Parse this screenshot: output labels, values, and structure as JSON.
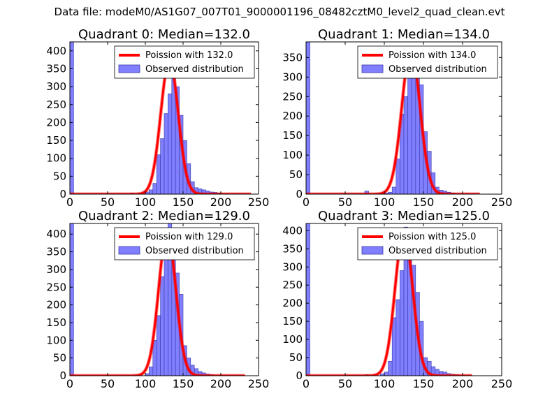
{
  "figure_title": "Data file: modeM0/AS1G07_007T01_9000001196_08482cztM0_level2_quad_clean.evt",
  "colors": {
    "bar_fill": "#7f7fff",
    "bar_edge": "#3a3aa8",
    "fit_line": "#ff0000",
    "axis": "#000000"
  },
  "legend_labels": {
    "fit_prefix": "Poission with",
    "observed": "Observed distribution"
  },
  "chart_data": [
    {
      "type": "bar",
      "title": "Quadrant 0: Median=132.0",
      "median": 132.0,
      "fit_label": "Poission with 132.0",
      "observed_label": "Observed distribution",
      "legend_position": "top-right",
      "xlim": [
        0,
        250
      ],
      "ylim": [
        0,
        425
      ],
      "xticks": [
        0,
        50,
        100,
        150,
        200,
        250
      ],
      "yticks": [
        0,
        50,
        100,
        150,
        200,
        250,
        300,
        350,
        400
      ],
      "bin_width": 5,
      "bins": [
        {
          "x": 0,
          "count": 425
        },
        {
          "x": 70,
          "count": 2
        },
        {
          "x": 80,
          "count": 3
        },
        {
          "x": 90,
          "count": 3
        },
        {
          "x": 95,
          "count": 4
        },
        {
          "x": 100,
          "count": 6
        },
        {
          "x": 105,
          "count": 12
        },
        {
          "x": 110,
          "count": 30
        },
        {
          "x": 115,
          "count": 110
        },
        {
          "x": 120,
          "count": 155
        },
        {
          "x": 125,
          "count": 225
        },
        {
          "x": 130,
          "count": 280
        },
        {
          "x": 135,
          "count": 325
        },
        {
          "x": 140,
          "count": 300
        },
        {
          "x": 145,
          "count": 220
        },
        {
          "x": 150,
          "count": 150
        },
        {
          "x": 155,
          "count": 85
        },
        {
          "x": 160,
          "count": 35
        },
        {
          "x": 165,
          "count": 18
        },
        {
          "x": 170,
          "count": 15
        },
        {
          "x": 175,
          "count": 12
        },
        {
          "x": 180,
          "count": 9
        },
        {
          "x": 185,
          "count": 6
        },
        {
          "x": 190,
          "count": 5
        },
        {
          "x": 195,
          "count": 3
        },
        {
          "x": 200,
          "count": 2
        },
        {
          "x": 205,
          "count": 2
        },
        {
          "x": 215,
          "count": 1
        }
      ],
      "fit": {
        "peak": 375,
        "x_start": 0,
        "x_end": 240
      }
    },
    {
      "type": "bar",
      "title": "Quadrant 1: Median=134.0",
      "median": 134.0,
      "fit_label": "Poission with 134.0",
      "observed_label": "Observed distribution",
      "legend_position": "top-right",
      "xlim": [
        0,
        250
      ],
      "ylim": [
        0,
        390
      ],
      "xticks": [
        0,
        50,
        100,
        150,
        200,
        250
      ],
      "yticks": [
        0,
        50,
        100,
        150,
        200,
        250,
        300,
        350
      ],
      "bin_width": 5,
      "bins": [
        {
          "x": 0,
          "count": 390
        },
        {
          "x": 75,
          "count": 8
        },
        {
          "x": 100,
          "count": 3
        },
        {
          "x": 105,
          "count": 5
        },
        {
          "x": 110,
          "count": 18
        },
        {
          "x": 115,
          "count": 90
        },
        {
          "x": 120,
          "count": 205
        },
        {
          "x": 125,
          "count": 250
        },
        {
          "x": 130,
          "count": 330
        },
        {
          "x": 135,
          "count": 360
        },
        {
          "x": 140,
          "count": 345
        },
        {
          "x": 145,
          "count": 280
        },
        {
          "x": 150,
          "count": 160
        },
        {
          "x": 155,
          "count": 110
        },
        {
          "x": 160,
          "count": 55
        },
        {
          "x": 165,
          "count": 18
        },
        {
          "x": 170,
          "count": 10
        },
        {
          "x": 175,
          "count": 8
        },
        {
          "x": 180,
          "count": 5
        },
        {
          "x": 185,
          "count": 3
        },
        {
          "x": 190,
          "count": 2
        },
        {
          "x": 200,
          "count": 1
        }
      ],
      "fit": {
        "peak": 372,
        "x_start": 0,
        "x_end": 222
      }
    },
    {
      "type": "bar",
      "title": "Quadrant 2: Median=129.0",
      "median": 129.0,
      "fit_label": "Poission with 129.0",
      "observed_label": "Observed distribution",
      "legend_position": "top-right",
      "xlim": [
        0,
        250
      ],
      "ylim": [
        0,
        430
      ],
      "xticks": [
        0,
        50,
        100,
        150,
        200,
        250
      ],
      "yticks": [
        0,
        50,
        100,
        150,
        200,
        250,
        300,
        350,
        400
      ],
      "bin_width": 5,
      "bins": [
        {
          "x": 0,
          "count": 430
        },
        {
          "x": 70,
          "count": 2
        },
        {
          "x": 80,
          "count": 2
        },
        {
          "x": 90,
          "count": 3
        },
        {
          "x": 100,
          "count": 6
        },
        {
          "x": 105,
          "count": 25
        },
        {
          "x": 110,
          "count": 100
        },
        {
          "x": 115,
          "count": 170
        },
        {
          "x": 120,
          "count": 280
        },
        {
          "x": 125,
          "count": 380
        },
        {
          "x": 130,
          "count": 430
        },
        {
          "x": 135,
          "count": 345
        },
        {
          "x": 140,
          "count": 290
        },
        {
          "x": 145,
          "count": 230
        },
        {
          "x": 150,
          "count": 85
        },
        {
          "x": 155,
          "count": 50
        },
        {
          "x": 160,
          "count": 30
        },
        {
          "x": 165,
          "count": 20
        },
        {
          "x": 170,
          "count": 12
        },
        {
          "x": 175,
          "count": 8
        },
        {
          "x": 180,
          "count": 5
        },
        {
          "x": 185,
          "count": 3
        },
        {
          "x": 190,
          "count": 2
        },
        {
          "x": 200,
          "count": 1
        }
      ],
      "fit": {
        "peak": 405,
        "x_start": 0,
        "x_end": 232
      }
    },
    {
      "type": "bar",
      "title": "Quadrant 3: Median=125.0",
      "median": 125.0,
      "fit_label": "Poission with 125.0",
      "observed_label": "Observed distribution",
      "legend_position": "top-right",
      "xlim": [
        0,
        250
      ],
      "ylim": [
        0,
        420
      ],
      "xticks": [
        0,
        50,
        100,
        150,
        200,
        250
      ],
      "yticks": [
        0,
        50,
        100,
        150,
        200,
        250,
        300,
        350,
        400
      ],
      "bin_width": 5,
      "bins": [
        {
          "x": 0,
          "count": 420
        },
        {
          "x": 65,
          "count": 2
        },
        {
          "x": 75,
          "count": 3
        },
        {
          "x": 85,
          "count": 2
        },
        {
          "x": 95,
          "count": 5
        },
        {
          "x": 100,
          "count": 10
        },
        {
          "x": 105,
          "count": 40
        },
        {
          "x": 110,
          "count": 160
        },
        {
          "x": 115,
          "count": 210
        },
        {
          "x": 120,
          "count": 290
        },
        {
          "x": 125,
          "count": 410
        },
        {
          "x": 130,
          "count": 350
        },
        {
          "x": 135,
          "count": 305
        },
        {
          "x": 140,
          "count": 230
        },
        {
          "x": 145,
          "count": 150
        },
        {
          "x": 150,
          "count": 50
        },
        {
          "x": 155,
          "count": 40
        },
        {
          "x": 160,
          "count": 25
        },
        {
          "x": 165,
          "count": 18
        },
        {
          "x": 170,
          "count": 12
        },
        {
          "x": 175,
          "count": 10
        },
        {
          "x": 180,
          "count": 6
        },
        {
          "x": 185,
          "count": 4
        },
        {
          "x": 190,
          "count": 3
        },
        {
          "x": 195,
          "count": 2
        }
      ],
      "fit": {
        "peak": 400,
        "x_start": 0,
        "x_end": 212
      }
    }
  ]
}
